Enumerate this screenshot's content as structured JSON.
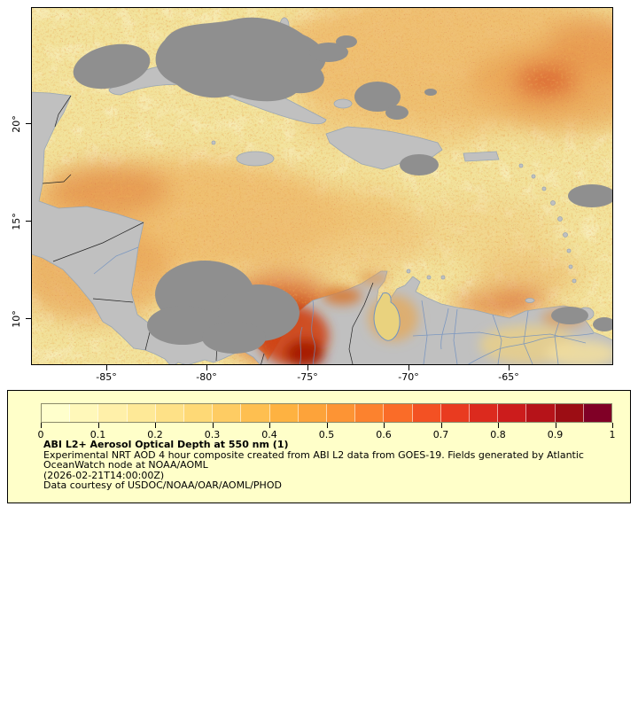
{
  "map": {
    "y_ticks": [
      "20°",
      "15°",
      "10°"
    ],
    "x_ticks": [
      "-85°",
      "-80°",
      "-75°",
      "-70°",
      "-65°"
    ],
    "colors": {
      "ocean_low_aod": "#F2E39C",
      "land": "#C0C0C0",
      "missing_data": "#8F8F8F",
      "coastline": "#9AA7B4",
      "river": "#7090C0",
      "country_border": "#222222",
      "high_aod": "#A51A05"
    }
  },
  "legend": {
    "ticks": [
      "0",
      "0.1",
      "0.2",
      "0.3",
      "0.4",
      "0.5",
      "0.6",
      "0.7",
      "0.8",
      "0.9",
      "1"
    ],
    "title": "ABI L2+ Aerosol Optical Depth at 550 nm (1)",
    "line1": "Experimental NRT AOD 4 hour composite created from ABI L2 data from GOES-19. Fields generated by Atlantic",
    "line2": "OceanWatch node at NOAA/AOML",
    "line3": "(2026-02-21T14:00:00Z)",
    "line4": "Data courtesy of USDOC/NOAA/OAR/AOML/PHOD",
    "panel_bg": "#FFFFC9"
  },
  "chart_data": {
    "type": "heatmap",
    "title": "ABI L2+ Aerosol Optical Depth at 550 nm (1)",
    "description": "Experimental NRT AOD 4 hour composite created from ABI L2 data from GOES-19. Fields generated by Atlantic OceanWatch node at NOAA/AOML",
    "timestamp": "(2026-02-21T14:00:00Z)",
    "source": "Data courtesy of USDOC/NOAA/OAR/AOML/PHOD",
    "x_tick_labels": [
      "-85°",
      "-80°",
      "-75°",
      "-70°",
      "-65°"
    ],
    "y_tick_labels": [
      "20°",
      "15°",
      "10°"
    ],
    "colorbar": {
      "range": [
        0,
        1
      ],
      "tick_labels": [
        "0",
        "0.1",
        "0.2",
        "0.3",
        "0.4",
        "0.5",
        "0.6",
        "0.7",
        "0.8",
        "0.9",
        "1"
      ],
      "colors": [
        "#FFFFCC",
        "#FFF8BA",
        "#FFF0A9",
        "#FEE997",
        "#FEE187",
        "#FED976",
        "#FECC63",
        "#FEBF50",
        "#FEB241",
        "#FDA33A",
        "#FD9434",
        "#FC822E",
        "#FA6C28",
        "#F35123",
        "#E93B20",
        "#DC2A1E",
        "#CC1C1C",
        "#B61319",
        "#9C0D14",
        "#800026"
      ]
    }
  }
}
